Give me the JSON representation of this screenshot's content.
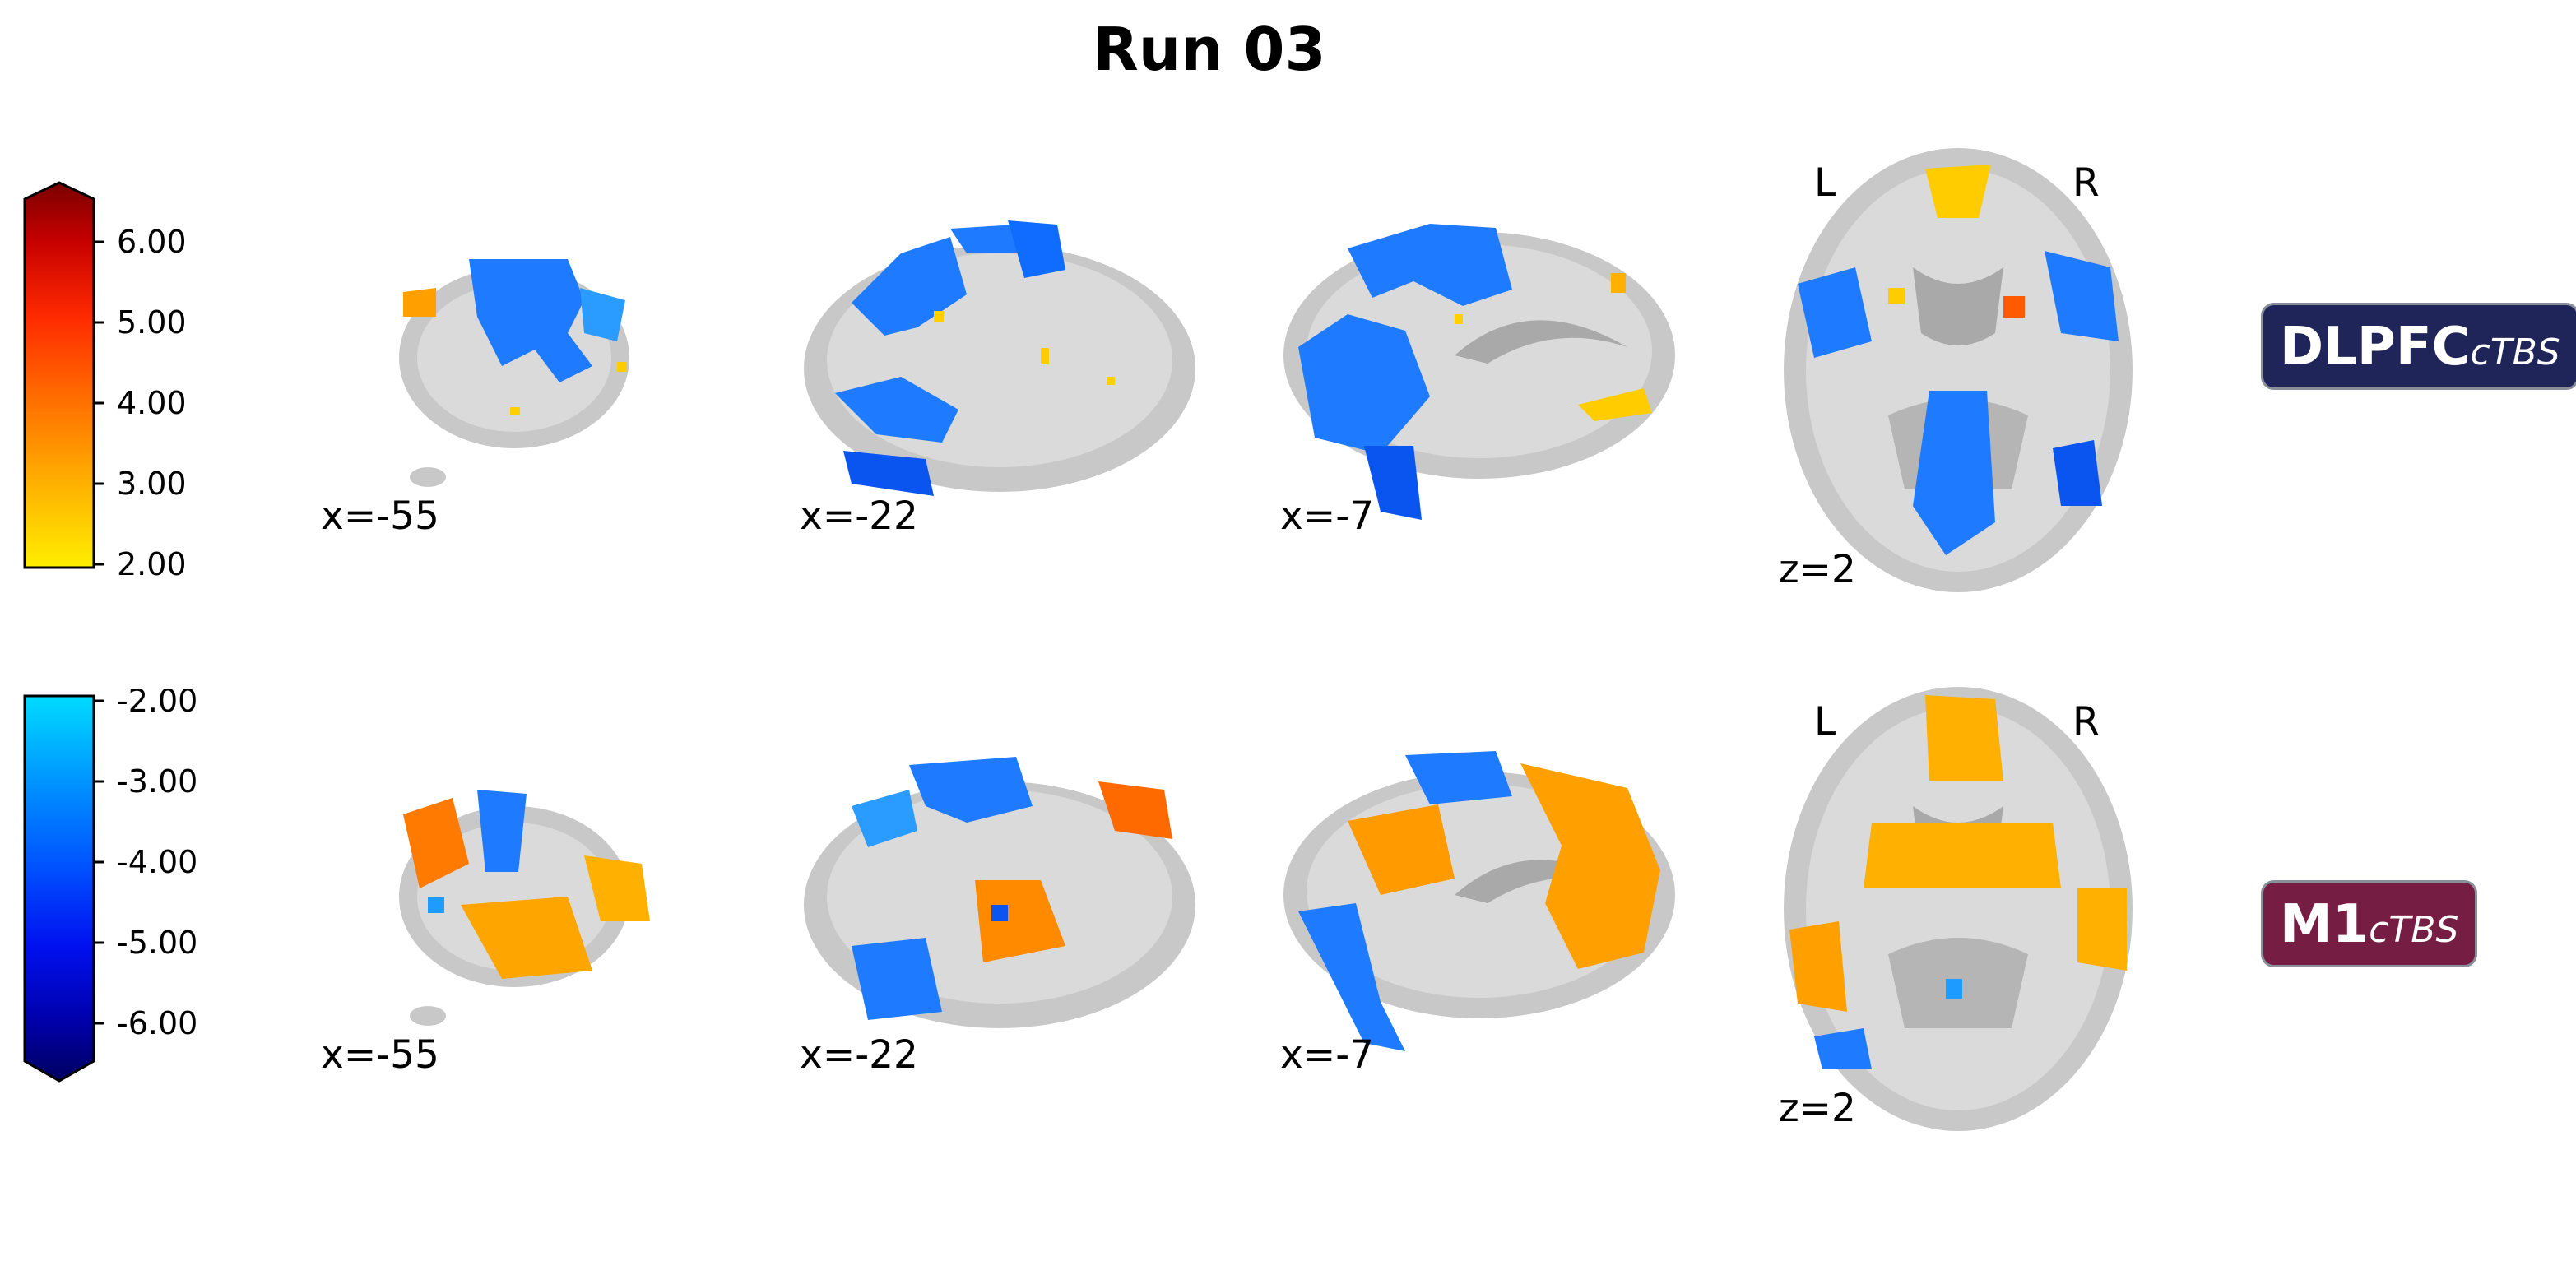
{
  "title": "Run 03",
  "colorbar_positive": {
    "ticks": [
      "6.00",
      "5.00",
      "4.00",
      "3.00",
      "2.00"
    ],
    "colors": [
      "#ffee00",
      "#ffb000",
      "#ff6a00",
      "#ff2a00",
      "#c60000",
      "#7a0000"
    ]
  },
  "colorbar_negative": {
    "ticks": [
      "-2.00",
      "-3.00",
      "-4.00",
      "-5.00",
      "-6.00"
    ],
    "colors": [
      "#00dcff",
      "#0095ff",
      "#0050ff",
      "#0010f0",
      "#0000a8",
      "#000060"
    ]
  },
  "rows": [
    {
      "label_main": "DLPFC",
      "label_sub": "cTBS",
      "label_color": "#1f2558",
      "slices": [
        {
          "coord": "x=-55",
          "view": "sagittal-lateral",
          "dominant": "blue"
        },
        {
          "coord": "x=-22",
          "view": "sagittal",
          "dominant": "blue"
        },
        {
          "coord": "x=-7",
          "view": "sagittal-medial",
          "dominant": "blue"
        },
        {
          "coord": "z=2",
          "view": "axial",
          "dominant": "blue",
          "left_marker": "L",
          "right_marker": "R"
        }
      ]
    },
    {
      "label_main": "M1",
      "label_sub": "cTBS",
      "label_color": "#761d43",
      "slices": [
        {
          "coord": "x=-55",
          "view": "sagittal-lateral",
          "dominant": "orange"
        },
        {
          "coord": "x=-22",
          "view": "sagittal",
          "dominant": "mixed"
        },
        {
          "coord": "x=-7",
          "view": "sagittal-medial",
          "dominant": "orange"
        },
        {
          "coord": "z=2",
          "view": "axial",
          "dominant": "orange",
          "left_marker": "L",
          "right_marker": "R"
        }
      ]
    }
  ]
}
